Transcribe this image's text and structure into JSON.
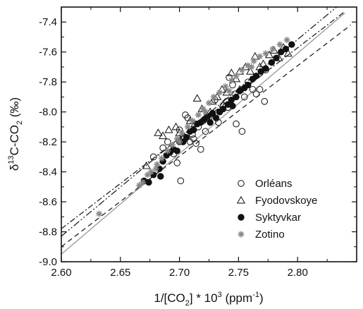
{
  "chart_data": {
    "type": "scatter",
    "title": "",
    "xlabel": {
      "a": "1/[CO",
      "sub": "2",
      "b": "] * 10",
      "sup": "3",
      "c": " (ppm",
      "sup2": "-1",
      "d": ")"
    },
    "ylabel": {
      "a": "δ",
      "sup": "13",
      "b": "C-CO",
      "sub": "2",
      "c": " (‰)"
    },
    "xlim": [
      2.6,
      2.85
    ],
    "ylim": [
      -9.0,
      -7.3
    ],
    "x_ticks": [
      2.6,
      2.65,
      2.7,
      2.75,
      2.8
    ],
    "x_tick_labels": [
      "2.60",
      "2.65",
      "2.70",
      "2.75",
      "2.80"
    ],
    "y_ticks": [
      -9.0,
      -8.8,
      -8.6,
      -8.4,
      -8.2,
      -8.0,
      -7.8,
      -7.6,
      -7.4
    ],
    "y_tick_labels": [
      "-9.0",
      "-8.8",
      "-8.6",
      "-8.4",
      "-8.2",
      "-8.0",
      "-7.8",
      "-7.6",
      "-7.4"
    ],
    "grid": false,
    "legend_position": "bottom-right",
    "series": [
      {
        "name": "Orléans",
        "marker": "open-circle",
        "color": "#222222",
        "points": [
          [
            2.678,
            -8.3
          ],
          [
            2.686,
            -8.24
          ],
          [
            2.69,
            -8.2
          ],
          [
            2.695,
            -8.28
          ],
          [
            2.698,
            -8.34
          ],
          [
            2.7,
            -8.12
          ],
          [
            2.701,
            -8.46
          ],
          [
            2.703,
            -8.16
          ],
          [
            2.705,
            -8.02
          ],
          [
            2.707,
            -8.04
          ],
          [
            2.709,
            -8.2
          ],
          [
            2.712,
            -8.18
          ],
          [
            2.714,
            -8.21
          ],
          [
            2.716,
            -8.1
          ],
          [
            2.72,
            -8.06
          ],
          [
            2.722,
            -8.13
          ],
          [
            2.725,
            -8.04
          ],
          [
            2.728,
            -8.01
          ],
          [
            2.73,
            -7.92
          ],
          [
            2.734,
            -8.0
          ],
          [
            2.737,
            -7.96
          ],
          [
            2.74,
            -7.93
          ],
          [
            2.742,
            -7.77
          ],
          [
            2.745,
            -7.82
          ],
          [
            2.747,
            -7.88
          ],
          [
            2.748,
            -8.08
          ],
          [
            2.753,
            -8.13
          ],
          [
            2.755,
            -7.9
          ],
          [
            2.758,
            -7.8
          ],
          [
            2.762,
            -7.85
          ],
          [
            2.765,
            -7.88
          ],
          [
            2.768,
            -7.85
          ],
          [
            2.772,
            -7.93
          ],
          [
            2.773,
            -7.72
          ],
          [
            2.741,
            -7.97
          ],
          [
            2.733,
            -8.07
          ],
          [
            2.718,
            -8.25
          ],
          [
            2.711,
            -8.15
          ]
        ]
      },
      {
        "name": "Fyodovskoye",
        "marker": "open-triangle",
        "color": "#222222",
        "points": [
          [
            2.672,
            -8.36
          ],
          [
            2.682,
            -8.14
          ],
          [
            2.686,
            -8.16
          ],
          [
            2.691,
            -8.12
          ],
          [
            2.697,
            -8.1
          ],
          [
            2.7,
            -8.14
          ],
          [
            2.703,
            -8.18
          ],
          [
            2.709,
            -8.06
          ],
          [
            2.713,
            -8.08
          ],
          [
            2.715,
            -7.91
          ],
          [
            2.719,
            -7.98
          ],
          [
            2.723,
            -8.02
          ],
          [
            2.728,
            -7.93
          ],
          [
            2.732,
            -7.9
          ],
          [
            2.736,
            -7.85
          ],
          [
            2.74,
            -7.87
          ],
          [
            2.744,
            -7.74
          ],
          [
            2.748,
            -7.78
          ],
          [
            2.751,
            -7.73
          ],
          [
            2.756,
            -7.7
          ],
          [
            2.76,
            -7.73
          ],
          [
            2.764,
            -7.63
          ],
          [
            2.768,
            -7.7
          ],
          [
            2.771,
            -7.68
          ],
          [
            2.776,
            -7.62
          ],
          [
            2.78,
            -7.59
          ],
          [
            2.784,
            -7.64
          ],
          [
            2.788,
            -7.57
          ],
          [
            2.792,
            -7.61
          ],
          [
            2.751,
            -7.85
          ],
          [
            2.737,
            -7.95
          ],
          [
            2.726,
            -8.0
          ]
        ]
      },
      {
        "name": "Syktyvkar",
        "marker": "filled-circle",
        "color": "#111111",
        "points": [
          [
            2.67,
            -8.46
          ],
          [
            2.674,
            -8.47
          ],
          [
            2.678,
            -8.42
          ],
          [
            2.683,
            -8.38
          ],
          [
            2.686,
            -8.33
          ],
          [
            2.689,
            -8.29
          ],
          [
            2.692,
            -8.27
          ],
          [
            2.695,
            -8.25
          ],
          [
            2.698,
            -8.26
          ],
          [
            2.7,
            -8.2
          ],
          [
            2.703,
            -8.2
          ],
          [
            2.706,
            -8.17
          ],
          [
            2.709,
            -8.13
          ],
          [
            2.712,
            -8.12
          ],
          [
            2.715,
            -8.08
          ],
          [
            2.718,
            -8.07
          ],
          [
            2.721,
            -8.05
          ],
          [
            2.724,
            -8.03
          ],
          [
            2.728,
            -8.01
          ],
          [
            2.731,
            -8.04
          ],
          [
            2.734,
            -8.0
          ],
          [
            2.737,
            -7.98
          ],
          [
            2.741,
            -7.95
          ],
          [
            2.744,
            -7.92
          ],
          [
            2.748,
            -7.9
          ],
          [
            2.751,
            -7.86
          ],
          [
            2.755,
            -7.84
          ],
          [
            2.758,
            -7.82
          ],
          [
            2.762,
            -7.78
          ],
          [
            2.765,
            -7.76
          ],
          [
            2.769,
            -7.73
          ],
          [
            2.773,
            -7.71
          ],
          [
            2.778,
            -7.67
          ],
          [
            2.782,
            -7.64
          ],
          [
            2.786,
            -7.6
          ],
          [
            2.79,
            -7.58
          ],
          [
            2.795,
            -7.55
          ],
          [
            2.684,
            -8.43
          ],
          [
            2.726,
            -8.07
          ],
          [
            2.745,
            -7.96
          ]
        ]
      },
      {
        "name": "Zotino",
        "marker": "asterisk",
        "color": "#888888",
        "points": [
          [
            2.632,
            -8.68
          ],
          [
            2.666,
            -8.49
          ],
          [
            2.669,
            -8.47
          ],
          [
            2.673,
            -8.42
          ],
          [
            2.676,
            -8.4
          ],
          [
            2.681,
            -8.35
          ],
          [
            2.685,
            -8.31
          ],
          [
            2.69,
            -8.26
          ],
          [
            2.694,
            -8.22
          ],
          [
            2.698,
            -8.18
          ],
          [
            2.702,
            -8.14
          ],
          [
            2.707,
            -8.1
          ],
          [
            2.711,
            -8.06
          ],
          [
            2.716,
            -8.02
          ],
          [
            2.72,
            -7.98
          ],
          [
            2.725,
            -7.94
          ],
          [
            2.729,
            -7.9
          ],
          [
            2.734,
            -7.87
          ],
          [
            2.739,
            -7.83
          ],
          [
            2.744,
            -7.79
          ],
          [
            2.748,
            -7.76
          ],
          [
            2.753,
            -7.72
          ],
          [
            2.758,
            -7.69
          ],
          [
            2.763,
            -7.66
          ],
          [
            2.768,
            -7.63
          ],
          [
            2.773,
            -7.61
          ],
          [
            2.779,
            -7.58
          ],
          [
            2.785,
            -7.55
          ],
          [
            2.791,
            -7.52
          ],
          [
            2.68,
            -8.38
          ],
          [
            2.7,
            -8.2
          ],
          [
            2.722,
            -8.0
          ],
          [
            2.742,
            -7.86
          ],
          [
            2.761,
            -7.7
          ]
        ]
      }
    ],
    "fit_lines": [
      {
        "style": "solid",
        "color": "#999999",
        "x": [
          2.6,
          2.84
        ],
        "y": [
          -8.95,
          -7.34
        ]
      },
      {
        "style": "dash",
        "color": "#222222",
        "x": [
          2.6,
          2.845
        ],
        "y": [
          -8.9,
          -7.42
        ]
      },
      {
        "style": "dashdot",
        "color": "#222222",
        "x": [
          2.6,
          2.84
        ],
        "y": [
          -8.78,
          -7.33
        ]
      },
      {
        "style": "dashdot2",
        "color": "#222222",
        "x": [
          2.6,
          2.833
        ],
        "y": [
          -8.83,
          -7.3
        ]
      }
    ]
  }
}
